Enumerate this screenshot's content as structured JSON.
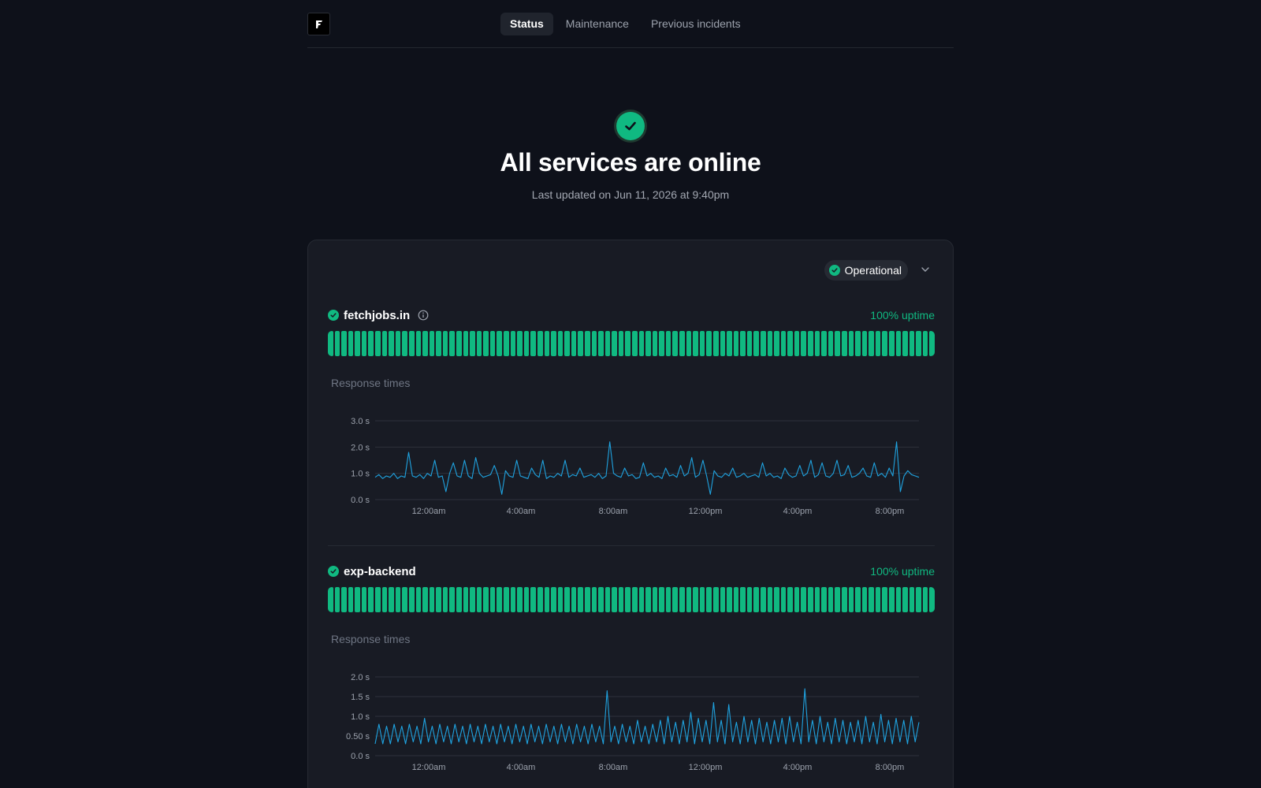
{
  "nav": {
    "tabs": [
      {
        "label": "Status",
        "active": true
      },
      {
        "label": "Maintenance",
        "active": false
      },
      {
        "label": "Previous incidents",
        "active": false
      }
    ]
  },
  "hero": {
    "title": "All services are online",
    "updated": "Last updated on Jun 11, 2026 at 9:40pm"
  },
  "status_filter": {
    "label": "Operational"
  },
  "colors": {
    "operational": "#10b981",
    "line": "#1fa3e0",
    "background": "#0e111a"
  },
  "services": [
    {
      "name": "fetchjobs.in",
      "uptime": "100% uptime",
      "bars": 90,
      "response_label": "Response times"
    },
    {
      "name": "exp-backend",
      "uptime": "100% uptime",
      "bars": 90,
      "response_label": "Response times"
    }
  ],
  "chart_data": [
    {
      "type": "line",
      "title": "",
      "xlabel": "",
      "ylabel": "",
      "x_ticks": [
        "12:00am",
        "4:00am",
        "8:00am",
        "12:00pm",
        "4:00pm",
        "8:00pm"
      ],
      "y_ticks": [
        "0.0 s",
        "1.0 s",
        "2.0 s",
        "3.0 s"
      ],
      "ylim": [
        0,
        3
      ],
      "grid": true,
      "series": [
        {
          "values": [
            0.85,
            0.95,
            0.8,
            0.9,
            0.85,
            1.0,
            0.8,
            0.9,
            0.85,
            1.8,
            0.9,
            0.85,
            0.95,
            0.8,
            1.0,
            0.9,
            1.5,
            0.85,
            0.9,
            0.3,
            1.0,
            1.4,
            0.9,
            0.85,
            1.5,
            0.9,
            0.8,
            1.6,
            1.0,
            0.85,
            0.9,
            0.95,
            1.3,
            0.9,
            0.2,
            1.1,
            0.9,
            0.85,
            1.5,
            0.9,
            0.85,
            0.8,
            1.2,
            0.95,
            0.85,
            1.5,
            0.8,
            0.9,
            0.85,
            1.0,
            0.9,
            1.5,
            0.85,
            0.95,
            0.9,
            1.2,
            0.85,
            0.9,
            0.95,
            0.85,
            1.0,
            0.8,
            0.9,
            2.2,
            1.0,
            0.9,
            0.85,
            1.2,
            0.9,
            0.95,
            0.8,
            0.85,
            1.4,
            0.9,
            1.0,
            0.85,
            0.9,
            0.8,
            1.2,
            0.9,
            0.95,
            0.85,
            1.3,
            0.9,
            1.0,
            1.6,
            0.85,
            0.95,
            1.5,
            0.9,
            0.2,
            1.1,
            0.9,
            0.85,
            1.0,
            0.9,
            1.2,
            0.85,
            0.9,
            1.0,
            0.85,
            0.9,
            0.95,
            0.85,
            1.4,
            0.9,
            1.0,
            0.85,
            0.9,
            0.8,
            1.2,
            0.95,
            0.85,
            0.9,
            1.3,
            0.9,
            1.0,
            1.5,
            0.85,
            0.95,
            1.4,
            0.9,
            0.85,
            1.0,
            1.5,
            0.9,
            0.95,
            1.3,
            0.85,
            0.9,
            1.0,
            1.2,
            0.9,
            0.85,
            1.4,
            0.9,
            1.0,
            0.85,
            1.2,
            0.9,
            2.2,
            0.3,
            0.9,
            1.1,
            0.95,
            0.9,
            0.85
          ]
        }
      ]
    },
    {
      "type": "line",
      "title": "",
      "xlabel": "",
      "ylabel": "",
      "x_ticks": [
        "12:00am",
        "4:00am",
        "8:00am",
        "12:00pm",
        "4:00pm",
        "8:00pm"
      ],
      "y_ticks": [
        "0.0 s",
        "0.50 s",
        "1.0 s",
        "1.5 s",
        "2.0 s"
      ],
      "ylim": [
        0,
        2
      ],
      "grid": true,
      "series": [
        {
          "values": [
            0.3,
            0.8,
            0.3,
            0.75,
            0.3,
            0.8,
            0.35,
            0.75,
            0.3,
            0.8,
            0.35,
            0.75,
            0.3,
            0.95,
            0.35,
            0.75,
            0.3,
            0.8,
            0.35,
            0.75,
            0.3,
            0.8,
            0.35,
            0.75,
            0.3,
            0.8,
            0.35,
            0.75,
            0.3,
            0.8,
            0.35,
            0.75,
            0.3,
            0.8,
            0.35,
            0.75,
            0.3,
            0.8,
            0.35,
            0.75,
            0.3,
            0.8,
            0.35,
            0.75,
            0.3,
            0.8,
            0.35,
            0.75,
            0.3,
            0.8,
            0.35,
            0.75,
            0.3,
            0.8,
            0.35,
            0.75,
            0.3,
            0.8,
            0.35,
            0.75,
            0.3,
            1.65,
            0.35,
            0.75,
            0.3,
            0.8,
            0.35,
            0.75,
            0.3,
            0.9,
            0.35,
            0.75,
            0.3,
            0.8,
            0.35,
            0.9,
            0.3,
            1.0,
            0.35,
            0.85,
            0.3,
            0.9,
            0.35,
            1.1,
            0.3,
            0.95,
            0.35,
            0.9,
            0.3,
            1.35,
            0.35,
            0.9,
            0.3,
            1.3,
            0.35,
            0.85,
            0.3,
            1.0,
            0.35,
            0.9,
            0.3,
            0.95,
            0.35,
            0.85,
            0.3,
            0.9,
            0.35,
            0.95,
            0.3,
            1.0,
            0.35,
            0.85,
            0.3,
            1.7,
            0.35,
            0.9,
            0.3,
            1.0,
            0.35,
            0.85,
            0.3,
            0.95,
            0.35,
            0.9,
            0.3,
            0.85,
            0.35,
            0.9,
            0.3,
            1.0,
            0.35,
            0.85,
            0.3,
            1.05,
            0.35,
            0.9,
            0.3,
            0.95,
            0.35,
            0.9,
            0.3,
            1.0,
            0.35,
            0.85
          ]
        }
      ]
    }
  ]
}
